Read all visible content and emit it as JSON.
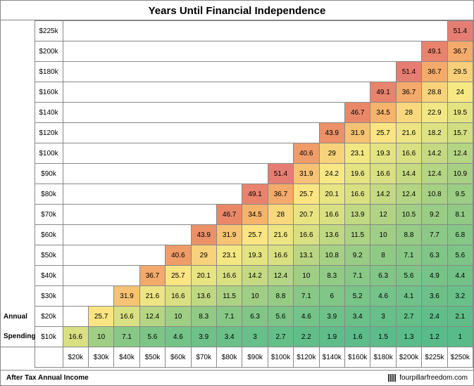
{
  "title": "Years Until Financial Independence",
  "y_axis_label_parts": [
    "Annual",
    "Spending"
  ],
  "y_labels": [
    "$225k",
    "$200k",
    "$180k",
    "$160k",
    "$140k",
    "$120k",
    "$100k",
    "$90k",
    "$80k",
    "$70k",
    "$60k",
    "$50k",
    "$40k",
    "$30k",
    "$20k",
    "$10k"
  ],
  "x_labels": [
    "$20k",
    "$30k",
    "$40k",
    "$50k",
    "$60k",
    "$70k",
    "$80k",
    "$90k",
    "$100k",
    "$120k",
    "$140k",
    "$160k",
    "$180k",
    "$200k",
    "$225k",
    "$250k"
  ],
  "footer_left": "After Tax Annual Income",
  "footer_right": "fourpillarfreedom.com",
  "cells": [
    [
      null,
      null,
      null,
      null,
      null,
      null,
      null,
      null,
      null,
      null,
      null,
      null,
      null,
      null,
      null,
      51.4
    ],
    [
      null,
      null,
      null,
      null,
      null,
      null,
      null,
      null,
      null,
      null,
      null,
      null,
      null,
      null,
      49.1,
      36.7
    ],
    [
      null,
      null,
      null,
      null,
      null,
      null,
      null,
      null,
      null,
      null,
      null,
      null,
      null,
      51.4,
      36.7,
      29.5
    ],
    [
      null,
      null,
      null,
      null,
      null,
      null,
      null,
      null,
      null,
      null,
      null,
      null,
      49.1,
      36.7,
      28.8,
      24
    ],
    [
      null,
      null,
      null,
      null,
      null,
      null,
      null,
      null,
      null,
      null,
      null,
      46.7,
      34.5,
      28,
      22.9,
      19.5
    ],
    [
      null,
      null,
      null,
      null,
      null,
      null,
      null,
      null,
      null,
      null,
      43.9,
      31.9,
      25.7,
      21.6,
      18.2,
      15.7
    ],
    [
      null,
      null,
      null,
      null,
      null,
      null,
      null,
      null,
      null,
      40.6,
      29,
      23.1,
      19.3,
      16.6,
      14.2,
      12.4
    ],
    [
      null,
      null,
      null,
      null,
      null,
      null,
      null,
      null,
      51.4,
      31.9,
      24.2,
      19.6,
      16.6,
      14.4,
      12.4,
      10.9
    ],
    [
      null,
      null,
      null,
      null,
      null,
      null,
      null,
      49.1,
      36.7,
      25.7,
      20.1,
      16.6,
      14.2,
      12.4,
      10.8,
      9.5
    ],
    [
      null,
      null,
      null,
      null,
      null,
      null,
      46.7,
      34.5,
      28,
      20.7,
      16.6,
      13.9,
      12,
      10.5,
      9.2,
      8.1
    ],
    [
      null,
      null,
      null,
      null,
      null,
      43.9,
      31.9,
      25.7,
      21.6,
      16.6,
      13.6,
      11.5,
      10,
      8.8,
      7.7,
      6.8
    ],
    [
      null,
      null,
      null,
      null,
      40.6,
      29,
      23.1,
      19.3,
      16.6,
      13.1,
      10.8,
      9.2,
      8,
      7.1,
      6.3,
      5.6
    ],
    [
      null,
      null,
      null,
      36.7,
      25.7,
      20.1,
      16.6,
      14.2,
      12.4,
      10,
      8.3,
      7.1,
      6.3,
      5.6,
      4.9,
      4.4
    ],
    [
      null,
      null,
      31.9,
      21.6,
      16.6,
      13.6,
      11.5,
      10,
      8.8,
      7.1,
      6,
      5.2,
      4.6,
      4.1,
      3.6,
      3.2
    ],
    [
      null,
      25.7,
      16.6,
      12.4,
      10,
      8.3,
      7.1,
      6.3,
      5.6,
      4.6,
      3.9,
      3.4,
      3,
      2.7,
      2.4,
      2.1
    ],
    [
      16.6,
      10,
      7.1,
      5.6,
      4.6,
      3.9,
      3.4,
      3,
      2.7,
      2.2,
      1.9,
      1.6,
      1.5,
      1.3,
      1.2,
      1
    ]
  ],
  "color_stops": [
    {
      "v": 1,
      "c": "#57bb8a"
    },
    {
      "v": 10,
      "c": "#9fce84"
    },
    {
      "v": 16.6,
      "c": "#d9e081"
    },
    {
      "v": 25,
      "c": "#fae984"
    },
    {
      "v": 35,
      "c": "#f5b06b"
    },
    {
      "v": 45,
      "c": "#ea8c66"
    },
    {
      "v": 52,
      "c": "#e67c73"
    }
  ]
}
